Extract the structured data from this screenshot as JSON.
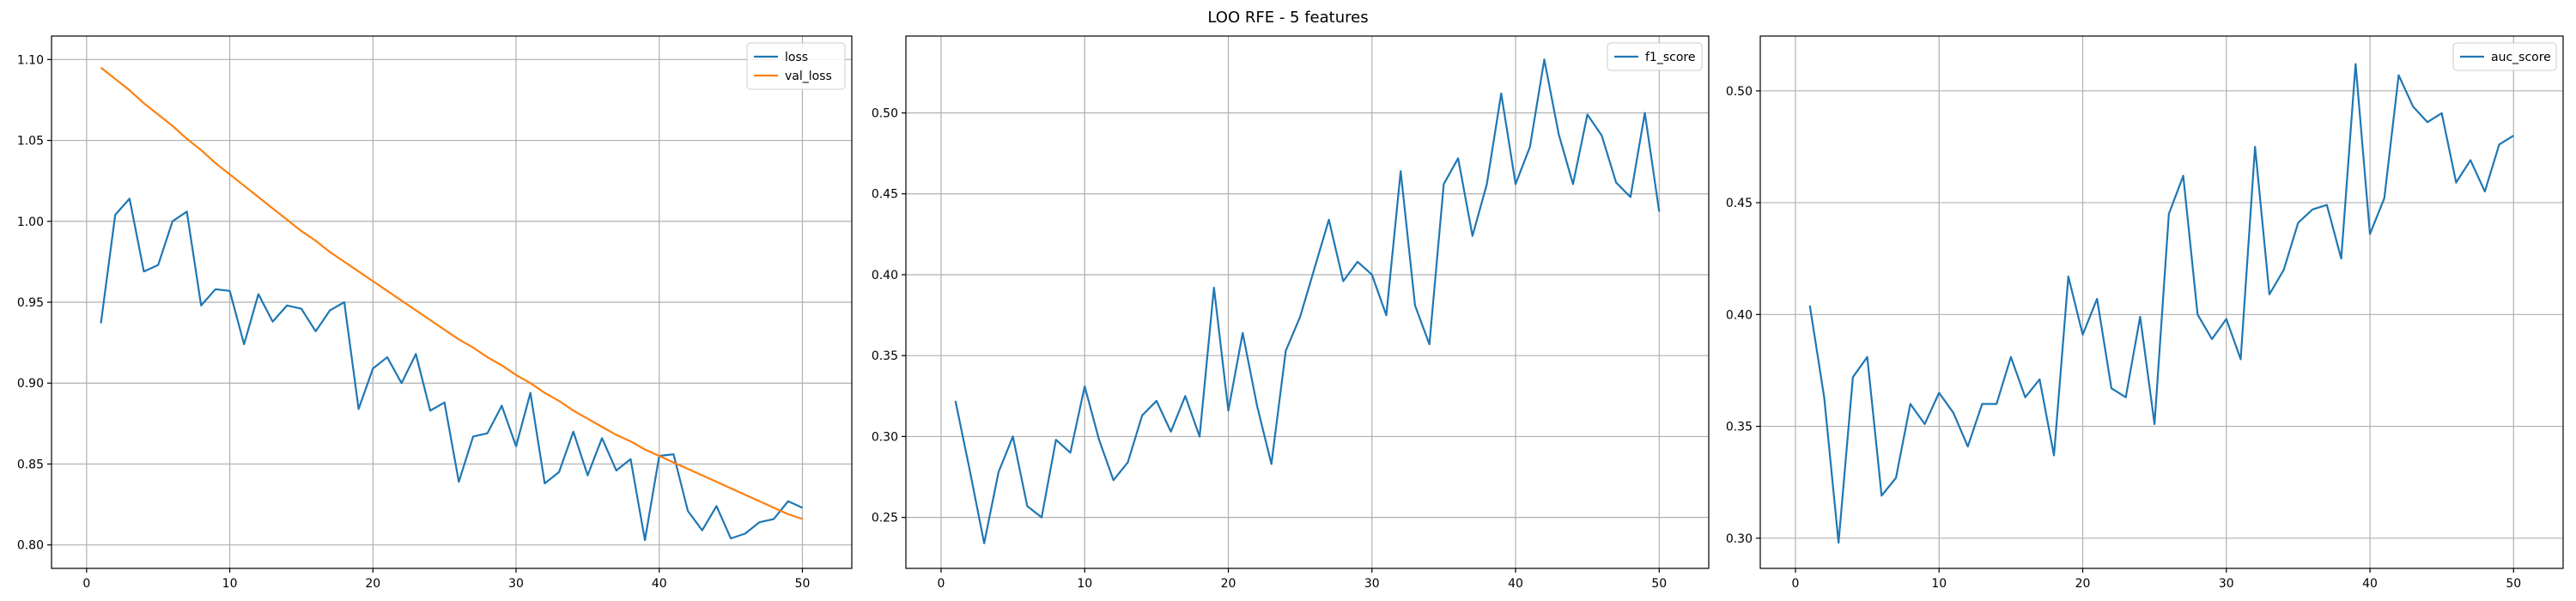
{
  "suptitle": "LOO RFE - 5 features",
  "colors": {
    "loss": "#1f77b4",
    "val_loss": "#ff7f0e",
    "grid": "#b0b0b0",
    "axes": "#000000"
  },
  "chart_data": [
    {
      "type": "line",
      "title": "",
      "xlabel": "",
      "ylabel": "",
      "xlim": [
        -2.45,
        53.45
      ],
      "ylim": [
        0.7855,
        1.1145
      ],
      "xticks": [
        0,
        10,
        20,
        30,
        40,
        50
      ],
      "yticks": [
        0.8,
        0.85,
        0.9,
        0.95,
        1.0,
        1.05,
        1.1
      ],
      "ytick_decimals": 2,
      "grid": true,
      "legend_position": "top-right",
      "x": [
        1,
        2,
        3,
        4,
        5,
        6,
        7,
        8,
        9,
        10,
        11,
        12,
        13,
        14,
        15,
        16,
        17,
        18,
        19,
        20,
        21,
        22,
        23,
        24,
        25,
        26,
        27,
        28,
        29,
        30,
        31,
        32,
        33,
        34,
        35,
        36,
        37,
        38,
        39,
        40,
        41,
        42,
        43,
        44,
        45,
        46,
        47,
        48,
        49,
        50
      ],
      "series": [
        {
          "name": "loss",
          "color": "#1f77b4",
          "values": [
            0.937,
            1.004,
            1.014,
            0.969,
            0.973,
            1.0,
            1.006,
            0.948,
            0.958,
            0.957,
            0.924,
            0.955,
            0.938,
            0.948,
            0.946,
            0.932,
            0.945,
            0.95,
            0.884,
            0.909,
            0.916,
            0.9,
            0.918,
            0.883,
            0.888,
            0.839,
            0.867,
            0.869,
            0.886,
            0.861,
            0.894,
            0.838,
            0.845,
            0.87,
            0.843,
            0.866,
            0.846,
            0.853,
            0.803,
            0.855,
            0.856,
            0.821,
            0.809,
            0.824,
            0.804,
            0.807,
            0.814,
            0.816,
            0.827,
            0.823
          ]
        },
        {
          "name": "val_loss",
          "color": "#ff7f0e",
          "values": [
            1.095,
            1.088,
            1.081,
            1.073,
            1.066,
            1.059,
            1.051,
            1.044,
            1.036,
            1.029,
            1.022,
            1.015,
            1.008,
            1.001,
            0.994,
            0.988,
            0.981,
            0.975,
            0.969,
            0.963,
            0.957,
            0.951,
            0.945,
            0.939,
            0.933,
            0.927,
            0.922,
            0.916,
            0.911,
            0.905,
            0.9,
            0.894,
            0.889,
            0.883,
            0.878,
            0.873,
            0.868,
            0.864,
            0.859,
            0.855,
            0.851,
            0.847,
            0.843,
            0.839,
            0.835,
            0.831,
            0.827,
            0.823,
            0.819,
            0.816
          ]
        }
      ]
    },
    {
      "type": "line",
      "title": "",
      "xlabel": "",
      "ylabel": "",
      "xlim": [
        -2.45,
        53.45
      ],
      "ylim": [
        0.2185,
        0.5475
      ],
      "xticks": [
        0,
        10,
        20,
        30,
        40,
        50
      ],
      "yticks": [
        0.25,
        0.3,
        0.35,
        0.4,
        0.45,
        0.5
      ],
      "ytick_decimals": 2,
      "grid": true,
      "legend_position": "top-right",
      "x": [
        1,
        2,
        3,
        4,
        5,
        6,
        7,
        8,
        9,
        10,
        11,
        12,
        13,
        14,
        15,
        16,
        17,
        18,
        19,
        20,
        21,
        22,
        23,
        24,
        25,
        26,
        27,
        28,
        29,
        30,
        31,
        32,
        33,
        34,
        35,
        36,
        37,
        38,
        39,
        40,
        41,
        42,
        43,
        44,
        45,
        46,
        47,
        48,
        49,
        50
      ],
      "series": [
        {
          "name": "f1_score",
          "color": "#1f77b4",
          "values": [
            0.322,
            0.279,
            0.234,
            0.278,
            0.3,
            0.257,
            0.25,
            0.298,
            0.29,
            0.331,
            0.298,
            0.273,
            0.284,
            0.313,
            0.322,
            0.303,
            0.325,
            0.3,
            0.392,
            0.316,
            0.364,
            0.319,
            0.283,
            0.353,
            0.374,
            0.404,
            0.434,
            0.396,
            0.408,
            0.4,
            0.375,
            0.464,
            0.381,
            0.357,
            0.456,
            0.472,
            0.424,
            0.456,
            0.512,
            0.456,
            0.479,
            0.533,
            0.487,
            0.456,
            0.499,
            0.486,
            0.457,
            0.448,
            0.5,
            0.439
          ]
        }
      ]
    },
    {
      "type": "line",
      "title": "",
      "xlabel": "",
      "ylabel": "",
      "xlim": [
        -2.45,
        53.45
      ],
      "ylim": [
        0.2865,
        0.5245
      ],
      "xticks": [
        0,
        10,
        20,
        30,
        40,
        50
      ],
      "yticks": [
        0.3,
        0.35,
        0.4,
        0.45,
        0.5
      ],
      "ytick_decimals": 2,
      "grid": true,
      "legend_position": "top-right",
      "x": [
        1,
        2,
        3,
        4,
        5,
        6,
        7,
        8,
        9,
        10,
        11,
        12,
        13,
        14,
        15,
        16,
        17,
        18,
        19,
        20,
        21,
        22,
        23,
        24,
        25,
        26,
        27,
        28,
        29,
        30,
        31,
        32,
        33,
        34,
        35,
        36,
        37,
        38,
        39,
        40,
        41,
        42,
        43,
        44,
        45,
        46,
        47,
        48,
        49,
        50
      ],
      "series": [
        {
          "name": "auc_score",
          "color": "#1f77b4",
          "values": [
            0.404,
            0.363,
            0.298,
            0.372,
            0.381,
            0.319,
            0.327,
            0.36,
            0.351,
            0.365,
            0.356,
            0.341,
            0.36,
            0.36,
            0.381,
            0.363,
            0.371,
            0.337,
            0.417,
            0.391,
            0.407,
            0.367,
            0.363,
            0.399,
            0.351,
            0.445,
            0.462,
            0.4,
            0.389,
            0.398,
            0.38,
            0.475,
            0.409,
            0.42,
            0.441,
            0.447,
            0.449,
            0.425,
            0.512,
            0.436,
            0.452,
            0.507,
            0.493,
            0.486,
            0.49,
            0.459,
            0.469,
            0.455,
            0.476,
            0.48
          ]
        }
      ]
    }
  ]
}
